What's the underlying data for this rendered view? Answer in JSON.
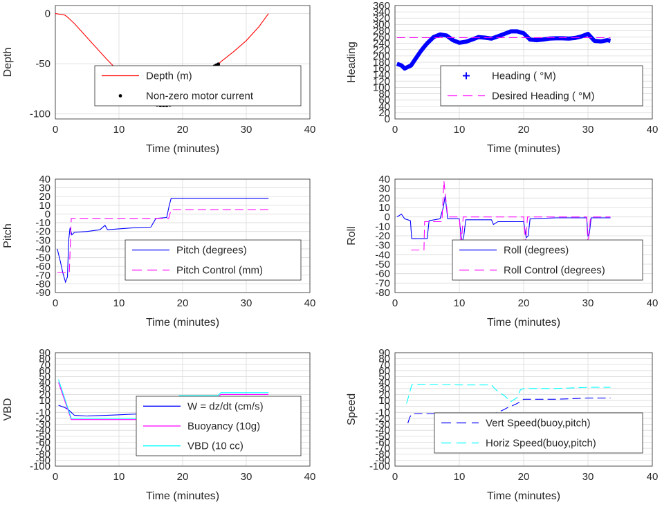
{
  "figure": {
    "xlabel": "Time (minutes)",
    "xticks": [
      "0",
      "10",
      "20",
      "30",
      "40"
    ],
    "xlim": [
      0,
      40
    ],
    "grid": true
  },
  "chart_data": [
    {
      "type": "line",
      "ylabel": "Depth",
      "xlabel": "Time (minutes)",
      "xlim": [
        0,
        40
      ],
      "ylim": [
        -105,
        8
      ],
      "yticks": [
        0,
        -50,
        -100
      ],
      "ytick_labels": [
        "0",
        "-50",
        "-100"
      ],
      "legend": "center-right",
      "series": [
        {
          "name": "Depth (m)",
          "style": "line",
          "color": "#ff0000",
          "x": [
            0,
            1,
            1.5,
            2,
            3,
            4,
            6,
            8,
            10,
            12,
            14,
            15,
            16,
            17,
            18,
            19,
            20,
            21,
            22,
            23,
            24,
            25,
            26,
            28,
            30,
            32,
            33.5
          ],
          "y": [
            0,
            -1,
            -1.5,
            -4,
            -10,
            -17,
            -31,
            -45,
            -58,
            -70,
            -82,
            -87,
            -90,
            -91.5,
            -91.5,
            -89,
            -84,
            -78,
            -72,
            -66,
            -60,
            -54,
            -48,
            -38,
            -27,
            -13,
            0
          ]
        },
        {
          "name": "Non-zero motor current",
          "style": "dots",
          "color": "#000000",
          "x": [
            15.5,
            16,
            16.5,
            17,
            17.5,
            18,
            18.5,
            19,
            19.5,
            20,
            25,
            25.3,
            25.6
          ],
          "y": [
            -90,
            -91,
            -91.5,
            -91.5,
            -91.5,
            -91,
            -90,
            -88,
            -86,
            -84,
            -52.5,
            -51.5,
            -50.5
          ]
        }
      ]
    },
    {
      "type": "line",
      "ylabel": "Heading",
      "xlabel": "Time (minutes)",
      "xlim": [
        0,
        40
      ],
      "ylim": [
        0,
        360
      ],
      "yticks": [
        0,
        20,
        40,
        60,
        80,
        100,
        120,
        140,
        160,
        180,
        200,
        220,
        240,
        260,
        280,
        300,
        320,
        340,
        360
      ],
      "ytick_labels": [
        "0",
        "20",
        "40",
        "60",
        "80",
        "100",
        "120",
        "140",
        "160",
        "180",
        "200",
        "220",
        "240",
        "260",
        "280",
        "300",
        "320",
        "340",
        "360"
      ],
      "legend": "lower-right",
      "series": [
        {
          "name": "Heading ( °M)",
          "style": "plus",
          "color": "#0000ff",
          "x": [
            0.3,
            1,
            1.5,
            2,
            2.5,
            3,
            3.5,
            4,
            4.5,
            5,
            6,
            7,
            8,
            9,
            10,
            11,
            12,
            13,
            14,
            15,
            16,
            17,
            18,
            19,
            20,
            21,
            22,
            23,
            24,
            25,
            26,
            27,
            28,
            29,
            30,
            31,
            32,
            33,
            33.5
          ],
          "y": [
            175,
            170,
            160,
            165,
            170,
            185,
            200,
            215,
            228,
            240,
            260,
            268,
            265,
            250,
            242,
            245,
            252,
            260,
            258,
            255,
            262,
            270,
            278,
            278,
            272,
            252,
            250,
            252,
            255,
            256,
            256,
            255,
            257,
            262,
            270,
            248,
            246,
            250,
            248
          ]
        },
        {
          "name": "Desired Heading ( °M)",
          "style": "dashed",
          "color": "#ff00ff",
          "x": [
            0.3,
            33.5
          ],
          "y": [
            258,
            258
          ]
        }
      ]
    },
    {
      "type": "line",
      "ylabel": "Pitch",
      "xlabel": "Time (minutes)",
      "xlim": [
        0,
        40
      ],
      "ylim": [
        -90,
        40
      ],
      "yticks": [
        40,
        30,
        20,
        10,
        0,
        -10,
        -20,
        -30,
        -40,
        -50,
        -60,
        -70,
        -80,
        -90
      ],
      "ytick_labels": [
        "40",
        "30",
        "20",
        "10",
        "0",
        "-10",
        "-20",
        "-30",
        "-40",
        "-50",
        "-60",
        "-70",
        "-80",
        "-90"
      ],
      "legend": "lower-right",
      "series": [
        {
          "name": "Pitch (degrees)",
          "style": "line",
          "color": "#0000ff",
          "x": [
            0.3,
            0.8,
            1.2,
            1.6,
            1.9,
            2.1,
            2.3,
            2.6,
            3,
            5,
            7,
            7.8,
            8.2,
            10,
            12,
            15,
            15.8,
            17.5,
            17.9,
            18.2,
            20,
            25,
            30,
            33.5
          ],
          "y": [
            -40,
            -55,
            -68,
            -78,
            -72,
            -30,
            -16,
            -24,
            -21,
            -20,
            -18,
            -13,
            -18,
            -17,
            -16,
            -15,
            -5,
            -4,
            10,
            18,
            18,
            18,
            18,
            18
          ]
        },
        {
          "name": "Pitch Control (mm)",
          "style": "dashed",
          "color": "#ff00ff",
          "x": [
            0.3,
            2.2,
            2.5,
            15.5,
            15.8,
            17.8,
            18.2,
            33.5
          ],
          "y": [
            -67,
            -67,
            -5,
            -5,
            -5,
            -5,
            5,
            5
          ]
        }
      ]
    },
    {
      "type": "line",
      "ylabel": "Roll",
      "xlabel": "Time (minutes)",
      "xlim": [
        0,
        40
      ],
      "ylim": [
        -80,
        40
      ],
      "yticks": [
        40,
        30,
        20,
        10,
        0,
        -10,
        -20,
        -30,
        -40,
        -50,
        -60,
        -70,
        -80
      ],
      "ytick_labels": [
        "40",
        "30",
        "20",
        "10",
        "0",
        "-10",
        "-20",
        "-30",
        "-40",
        "-50",
        "-60",
        "-70",
        "-80"
      ],
      "legend": "lower-right",
      "series": [
        {
          "name": "Roll (degrees)",
          "style": "line",
          "color": "#0000ff",
          "x": [
            0.3,
            1,
            1.5,
            2,
            2.4,
            2.6,
            5,
            5.3,
            7,
            7.5,
            7.8,
            8.2,
            10,
            10.4,
            10.7,
            11,
            15,
            15.3,
            16,
            20,
            20.4,
            20.7,
            21,
            25,
            29.8,
            30,
            30.2,
            30.5,
            33.5
          ],
          "y": [
            0,
            3,
            -2,
            -3,
            -4,
            -23,
            -23,
            -4,
            -2,
            10,
            22,
            -2,
            -2,
            -28,
            -20,
            -3,
            -3,
            -8,
            -5,
            -5,
            -22,
            -20,
            -2,
            -1,
            -1,
            -20,
            -18,
            -1,
            -1
          ]
        },
        {
          "name": "Roll Control (degrees)",
          "style": "dashed",
          "color": "#ff00ff",
          "x": [
            2.5,
            4.5,
            4.6,
            7.3,
            7.6,
            8.2,
            10,
            10.3,
            10.6,
            20,
            20.3,
            20.6,
            29.8,
            30,
            30.4,
            33.5
          ],
          "y": [
            -35,
            -35,
            -5,
            -5,
            38,
            0,
            0,
            -30,
            0,
            0,
            -28,
            0,
            0,
            -30,
            0,
            0
          ]
        }
      ]
    },
    {
      "type": "line",
      "ylabel": "VBD",
      "xlabel": "Time (minutes)",
      "xlim": [
        0,
        40
      ],
      "ylim": [
        -100,
        90
      ],
      "yticks": [
        90,
        80,
        70,
        60,
        50,
        40,
        30,
        20,
        10,
        0,
        -10,
        -20,
        -30,
        -40,
        -50,
        -60,
        -70,
        -80,
        -90,
        -100
      ],
      "ytick_labels": [
        "90",
        "80",
        "70",
        "60",
        "50",
        "40",
        "30",
        "20",
        "10",
        "0",
        "-10",
        "-20",
        "-30",
        "-40",
        "-50",
        "-60",
        "-70",
        "-80",
        "-90",
        "-100"
      ],
      "legend": "lower-right",
      "series": [
        {
          "name": "W = dz/dt (cm/s)",
          "style": "line",
          "color": "#0000ff",
          "x": [
            0.5,
            1,
            1.5,
            2,
            2.5,
            3,
            5,
            8,
            10,
            12,
            15,
            16,
            17,
            18,
            20,
            22,
            25,
            30,
            33.5
          ],
          "y": [
            2,
            0,
            -2,
            -5,
            -10,
            -15,
            -16,
            -15,
            -14,
            -13,
            -12,
            -8,
            -5,
            0,
            5,
            8,
            10,
            12,
            12
          ]
        },
        {
          "name": "Buoyancy (10g)",
          "style": "line",
          "color": "#ff00ff",
          "x": [
            0.5,
            2.5,
            15.5,
            19.5,
            25.5,
            26,
            33.5
          ],
          "y": [
            40,
            -22,
            -22,
            15,
            15,
            20,
            20
          ]
        },
        {
          "name": "VBD (10 cc)",
          "style": "line",
          "color": "#00ffff",
          "x": [
            0.5,
            2.5,
            15.5,
            19.5,
            25.5,
            26,
            33.5
          ],
          "y": [
            45,
            -20,
            -20,
            18,
            18,
            23,
            23
          ]
        }
      ]
    },
    {
      "type": "line",
      "ylabel": "Speed",
      "xlabel": "Time (minutes)",
      "xlim": [
        0,
        40
      ],
      "ylim": [
        -100,
        90
      ],
      "yticks": [
        90,
        80,
        70,
        60,
        50,
        40,
        30,
        20,
        10,
        0,
        -10,
        -20,
        -30,
        -40,
        -50,
        -60,
        -70,
        -80,
        -90,
        -100
      ],
      "ytick_labels": [
        "90",
        "80",
        "70",
        "60",
        "50",
        "40",
        "30",
        "20",
        "10",
        "0",
        "-10",
        "-20",
        "-30",
        "-40",
        "-50",
        "-60",
        "-70",
        "-80",
        "-90",
        "-100"
      ],
      "legend": "lower-right",
      "series": [
        {
          "name": "Vert Speed(buoy,pitch)",
          "style": "dashed",
          "color": "#0000ff",
          "x": [
            2,
            2.3,
            2.7,
            3,
            5,
            8,
            10,
            12,
            15,
            15.5,
            16,
            17,
            17.5,
            18,
            19,
            20,
            25,
            30,
            33.5
          ],
          "y": [
            -28,
            -18,
            -12,
            -12,
            -12,
            -12,
            -12,
            -12,
            -12,
            -12,
            -10,
            -5,
            -2,
            0,
            5,
            12,
            12,
            14,
            14
          ]
        },
        {
          "name": "Horiz Speed(buoy,pitch)",
          "style": "dashed",
          "color": "#00ffff",
          "x": [
            1.8,
            2.2,
            2.6,
            3,
            5,
            10,
            15,
            15.5,
            16,
            17,
            18,
            19,
            19.5,
            20,
            25,
            30,
            33.5
          ],
          "y": [
            5,
            20,
            36,
            37,
            37,
            36,
            36,
            30,
            25,
            18,
            8,
            15,
            28,
            30,
            30,
            32,
            32
          ]
        }
      ]
    }
  ]
}
